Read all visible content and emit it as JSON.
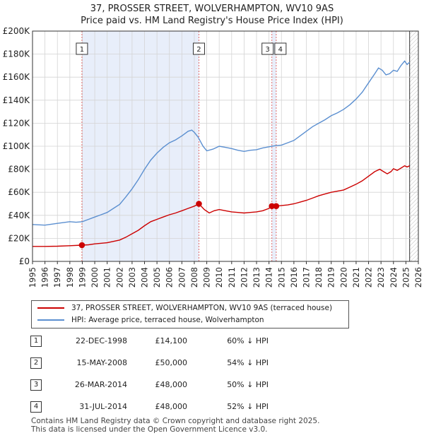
{
  "header": {
    "title_line1": "37, PROSSER STREET, WOLVERHAMPTON, WV10 9AS",
    "title_line2": "Price paid vs. HM Land Registry's House Price Index (HPI)"
  },
  "chart_data": {
    "type": "line",
    "title": "37, PROSSER STREET, WOLVERHAMPTON, WV10 9AS - Price paid vs. HM Land Registry's House Price Index (HPI)",
    "xlim": [
      1995,
      2026
    ],
    "ylim": [
      0,
      200000
    ],
    "x_ticks": [
      "1995",
      "1996",
      "1997",
      "1998",
      "1999",
      "2000",
      "2001",
      "2002",
      "2003",
      "2004",
      "2005",
      "2006",
      "2007",
      "2008",
      "2009",
      "2010",
      "2011",
      "2012",
      "2013",
      "2014",
      "2015",
      "2016",
      "2017",
      "2018",
      "2019",
      "2020",
      "2021",
      "2022",
      "2023",
      "2024",
      "2025",
      "2026"
    ],
    "y_ticks": [
      {
        "value": 0,
        "label": "£0"
      },
      {
        "value": 20000,
        "label": "£20K"
      },
      {
        "value": 40000,
        "label": "£40K"
      },
      {
        "value": 60000,
        "label": "£60K"
      },
      {
        "value": 80000,
        "label": "£80K"
      },
      {
        "value": 100000,
        "label": "£100K"
      },
      {
        "value": 120000,
        "label": "£120K"
      },
      {
        "value": 140000,
        "label": "£140K"
      },
      {
        "value": 160000,
        "label": "£160K"
      },
      {
        "value": 180000,
        "label": "£180K"
      },
      {
        "value": 200000,
        "label": "£200K"
      }
    ],
    "shaded_ranges": [
      [
        1998.97,
        2008.37
      ],
      [
        2014.23,
        2014.58
      ]
    ],
    "future_hatch_from": 2025.3,
    "series": [
      {
        "name": "37, PROSSER STREET, WOLVERHAMPTON, WV10 9AS (terraced house)",
        "color": "#cc0000",
        "points": [
          [
            1995.0,
            13000
          ],
          [
            1996.0,
            13000
          ],
          [
            1997.0,
            13200
          ],
          [
            1998.0,
            13600
          ],
          [
            1998.97,
            14100
          ],
          [
            1999.5,
            14400
          ],
          [
            2000.0,
            15200
          ],
          [
            2001.0,
            16200
          ],
          [
            2002.0,
            18500
          ],
          [
            2002.5,
            21000
          ],
          [
            2003.0,
            24000
          ],
          [
            2003.5,
            27000
          ],
          [
            2004.0,
            31000
          ],
          [
            2004.5,
            34500
          ],
          [
            2005.0,
            36500
          ],
          [
            2005.5,
            38500
          ],
          [
            2006.0,
            40500
          ],
          [
            2006.5,
            42000
          ],
          [
            2007.0,
            44000
          ],
          [
            2007.5,
            46000
          ],
          [
            2008.0,
            48000
          ],
          [
            2008.37,
            50000
          ],
          [
            2008.8,
            45000
          ],
          [
            2009.2,
            42000
          ],
          [
            2009.6,
            44000
          ],
          [
            2010.0,
            45000
          ],
          [
            2010.5,
            44000
          ],
          [
            2011.0,
            43000
          ],
          [
            2011.5,
            42500
          ],
          [
            2012.0,
            42000
          ],
          [
            2012.5,
            42500
          ],
          [
            2013.0,
            43000
          ],
          [
            2013.5,
            44000
          ],
          [
            2014.0,
            46000
          ],
          [
            2014.23,
            48000
          ],
          [
            2014.58,
            48000
          ],
          [
            2015.0,
            48500
          ],
          [
            2015.5,
            49000
          ],
          [
            2016.0,
            50000
          ],
          [
            2016.5,
            51500
          ],
          [
            2017.0,
            53000
          ],
          [
            2017.5,
            55000
          ],
          [
            2018.0,
            57000
          ],
          [
            2018.5,
            58500
          ],
          [
            2019.0,
            60000
          ],
          [
            2019.5,
            61000
          ],
          [
            2020.0,
            62000
          ],
          [
            2020.5,
            64500
          ],
          [
            2021.0,
            67000
          ],
          [
            2021.5,
            70000
          ],
          [
            2022.0,
            74000
          ],
          [
            2022.5,
            78000
          ],
          [
            2022.9,
            80000
          ],
          [
            2023.2,
            78000
          ],
          [
            2023.5,
            76000
          ],
          [
            2023.8,
            78000
          ],
          [
            2024.0,
            80500
          ],
          [
            2024.3,
            79000
          ],
          [
            2024.6,
            81000
          ],
          [
            2024.9,
            83000
          ],
          [
            2025.1,
            82000
          ],
          [
            2025.3,
            83000
          ]
        ]
      },
      {
        "name": "HPI: Average price, terraced house, Wolverhampton",
        "color": "#5b8fd0",
        "points": [
          [
            1995.0,
            32000
          ],
          [
            1996.0,
            31500
          ],
          [
            1997.0,
            33000
          ],
          [
            1998.0,
            34500
          ],
          [
            1998.5,
            34000
          ],
          [
            1999.0,
            34500
          ],
          [
            1999.5,
            36500
          ],
          [
            2000.0,
            38500
          ],
          [
            2000.5,
            40500
          ],
          [
            2001.0,
            42500
          ],
          [
            2001.5,
            46000
          ],
          [
            2002.0,
            49500
          ],
          [
            2002.5,
            56000
          ],
          [
            2003.0,
            63000
          ],
          [
            2003.5,
            71000
          ],
          [
            2004.0,
            80000
          ],
          [
            2004.5,
            88000
          ],
          [
            2005.0,
            94000
          ],
          [
            2005.5,
            99000
          ],
          [
            2006.0,
            103000
          ],
          [
            2006.5,
            105500
          ],
          [
            2007.0,
            109000
          ],
          [
            2007.5,
            113000
          ],
          [
            2007.8,
            114000
          ],
          [
            2008.0,
            112000
          ],
          [
            2008.3,
            108000
          ],
          [
            2008.7,
            100000
          ],
          [
            2009.0,
            96000
          ],
          [
            2009.5,
            97500
          ],
          [
            2010.0,
            100000
          ],
          [
            2010.5,
            99000
          ],
          [
            2011.0,
            98000
          ],
          [
            2011.5,
            96500
          ],
          [
            2012.0,
            95500
          ],
          [
            2012.5,
            96500
          ],
          [
            2013.0,
            97000
          ],
          [
            2013.5,
            98500
          ],
          [
            2014.0,
            99500
          ],
          [
            2014.5,
            100500
          ],
          [
            2015.0,
            101000
          ],
          [
            2015.5,
            103000
          ],
          [
            2016.0,
            105000
          ],
          [
            2016.5,
            109000
          ],
          [
            2017.0,
            113000
          ],
          [
            2017.5,
            117000
          ],
          [
            2018.0,
            120000
          ],
          [
            2018.5,
            123000
          ],
          [
            2019.0,
            126500
          ],
          [
            2019.5,
            129000
          ],
          [
            2020.0,
            132000
          ],
          [
            2020.5,
            136000
          ],
          [
            2021.0,
            141000
          ],
          [
            2021.5,
            147000
          ],
          [
            2022.0,
            155000
          ],
          [
            2022.5,
            163000
          ],
          [
            2022.8,
            168000
          ],
          [
            2023.1,
            166000
          ],
          [
            2023.4,
            162000
          ],
          [
            2023.7,
            163000
          ],
          [
            2024.0,
            166000
          ],
          [
            2024.3,
            165000
          ],
          [
            2024.6,
            170000
          ],
          [
            2024.9,
            174000
          ],
          [
            2025.1,
            171000
          ],
          [
            2025.3,
            173000
          ]
        ]
      }
    ],
    "sales": [
      {
        "label": "1",
        "x": 1998.97,
        "y": 14100
      },
      {
        "label": "2",
        "x": 2008.37,
        "y": 50000
      },
      {
        "label": "3",
        "x": 2014.23,
        "y": 48000
      },
      {
        "label": "4",
        "x": 2014.58,
        "y": 48000
      }
    ]
  },
  "legend": {
    "items": [
      {
        "label": "37, PROSSER STREET, WOLVERHAMPTON, WV10 9AS (terraced house)",
        "color": "#cc0000"
      },
      {
        "label": "HPI: Average price, terraced house, Wolverhampton",
        "color": "#5b8fd0"
      }
    ]
  },
  "transactions": [
    {
      "num": "1",
      "date": "22-DEC-1998",
      "price": "£14,100",
      "hpi": "60% ↓ HPI"
    },
    {
      "num": "2",
      "date": "15-MAY-2008",
      "price": "£50,000",
      "hpi": "54% ↓ HPI"
    },
    {
      "num": "3",
      "date": "26-MAR-2014",
      "price": "£48,000",
      "hpi": "50% ↓ HPI"
    },
    {
      "num": "4",
      "date": "31-JUL-2014",
      "price": "£48,000",
      "hpi": "52% ↓ HPI"
    }
  ],
  "footer": {
    "line1": "Contains HM Land Registry data © Crown copyright and database right 2025.",
    "line2": "This data is licensed under the Open Government Licence v3.0."
  }
}
